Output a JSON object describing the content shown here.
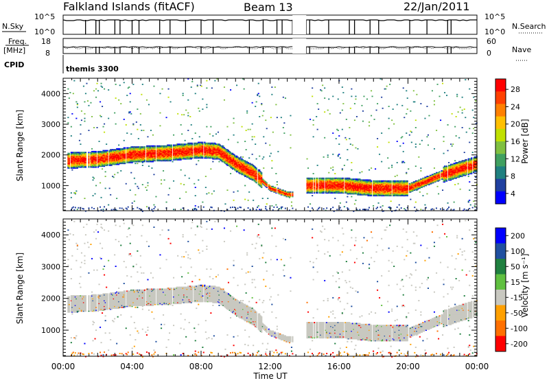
{
  "header": {
    "station": "Falkland Islands (fitACF)",
    "beam": "Beam 13",
    "date": "22/Jan/2011"
  },
  "status_panels": {
    "nsky_label": "N.Sky",
    "nsky_ticks": [
      "10^5",
      "10^0"
    ],
    "nsearch_label": "N.Search",
    "nsearch_ticks": [
      "10^5",
      "10^0"
    ],
    "freq_label_1": "Freq.",
    "freq_label_2": "[MHz]",
    "freq_ticks": [
      "18",
      "8"
    ],
    "nave_label": "Nave",
    "nave_ticks": [
      "60",
      "0"
    ],
    "cpid_label": "CPID",
    "cpid_value": "themis 3300"
  },
  "axes": {
    "ylabel": "Slant Range [km]",
    "xlabel": "Time UT",
    "yticks": [
      "4000",
      "3000",
      "2000",
      "1000"
    ],
    "xticks": [
      "00:00",
      "04:00",
      "08:00",
      "12:00",
      "16:00",
      "20:00",
      "00:00"
    ]
  },
  "power_scale": {
    "label": "Power [dB]",
    "ticks": [
      "28",
      "24",
      "20",
      "16",
      "12",
      "8",
      "4"
    ],
    "colors": [
      "#ff0000",
      "#ff4000",
      "#ff8000",
      "#ffc000",
      "#c0e000",
      "#80c040",
      "#40a060",
      "#208080",
      "#2040a0",
      "#0000ff"
    ]
  },
  "velocity_scale": {
    "label": "Velocity [m s⁻¹]",
    "ticks": [
      "200",
      "100",
      "50",
      "15",
      "-15",
      "-50",
      "-100",
      "-200"
    ],
    "colors": [
      "#0000ff",
      "#2050a0",
      "#208040",
      "#60c040",
      "#c8c8c0",
      "#ffa000",
      "#ff7000",
      "#ff0000"
    ]
  },
  "chart_data": [
    {
      "type": "heatmap",
      "title": "Power",
      "xlabel": "Time UT",
      "ylabel": "Slant Range [km]",
      "xlim": [
        0,
        24
      ],
      "ylim": [
        180,
        4500
      ],
      "colorbar": {
        "label": "Power [dB]",
        "range": [
          0,
          30
        ],
        "ticks": [
          4,
          8,
          12,
          16,
          20,
          24,
          28
        ]
      },
      "band": {
        "center_km_by_hour": {
          "x": [
            0,
            2,
            4,
            6,
            8,
            9,
            10,
            11,
            12,
            13,
            14,
            15,
            16,
            18,
            20,
            22,
            24
          ],
          "y": [
            1800,
            1850,
            2000,
            2050,
            2150,
            2100,
            1700,
            1400,
            900,
            700,
            null,
            1000,
            1000,
            900,
            900,
            1350,
            1700
          ]
        },
        "typical_power_dB": 24,
        "gap_hours": [
          13.3,
          14.1
        ]
      }
    },
    {
      "type": "heatmap",
      "title": "Velocity",
      "xlabel": "Time UT",
      "ylabel": "Slant Range [km]",
      "xlim": [
        0,
        24
      ],
      "ylim": [
        180,
        4500
      ],
      "colorbar": {
        "label": "Velocity [m s⁻¹]",
        "ticks": [
          200,
          100,
          50,
          15,
          -15,
          -50,
          -100,
          -200
        ]
      },
      "band": {
        "typical_velocity": "-15 to 15",
        "gap_hours": [
          13.3,
          14.1
        ]
      }
    }
  ]
}
